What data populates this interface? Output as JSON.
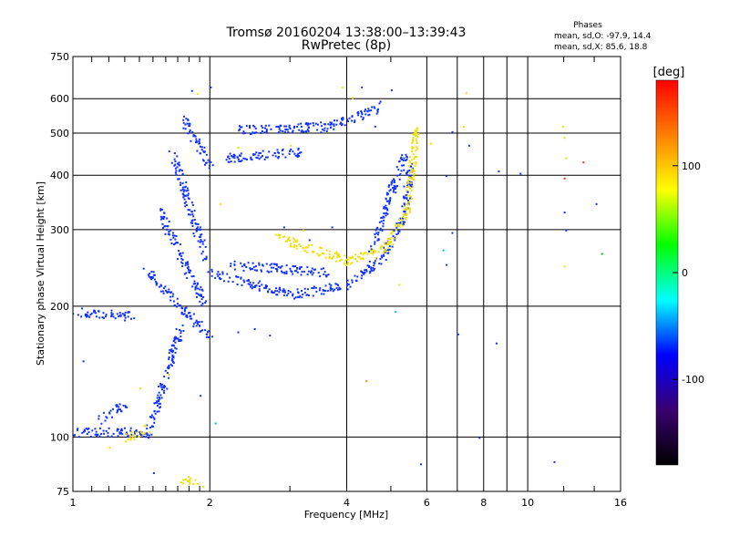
{
  "chart_data": {
    "type": "scatter",
    "title": "Tromsø 20160204 13:38:00–13:39:43",
    "subtitle": "RwPretec (8p)",
    "xlabel": "Frequency [MHz]",
    "ylabel": "Stationary phase Virtual Height [km]",
    "x_scale": "log",
    "y_scale": "log",
    "xlim": [
      1,
      16
    ],
    "ylim": [
      75,
      750
    ],
    "xticks": [
      "1",
      "2",
      "4",
      "6",
      "8",
      "10",
      "16"
    ],
    "yticks": [
      "75",
      "100",
      "200",
      "300",
      "400",
      "500",
      "600",
      "750"
    ],
    "grid": true,
    "phase_info": {
      "title": "Phases",
      "line_o": "mean, sd,O: -97.9, 14.4",
      "line_x": "mean, sd,X:  85.6, 18.8"
    },
    "colorbar": {
      "label": "[deg]",
      "range": [
        -180,
        180
      ],
      "ticks": [
        "100",
        "0",
        "-100"
      ],
      "stops": [
        "#000000",
        "#3a0070",
        "#0000ff",
        "#00ffff",
        "#00ff00",
        "#ffff00",
        "#ff8000",
        "#ff0000"
      ]
    },
    "series": [
      {
        "color": "#1030ff",
        "segments": [
          [
            1.0,
            195,
            1.35,
            190
          ],
          [
            1.0,
            103,
            1.4,
            103
          ],
          [
            1.45,
            100,
            1.72,
            180
          ],
          [
            1.45,
            240,
            2.0,
            170
          ],
          [
            1.55,
            330,
            1.95,
            200
          ],
          [
            1.65,
            450,
            1.95,
            260
          ],
          [
            1.75,
            540,
            2.0,
            420
          ],
          [
            2.0,
            240,
            3.0,
            213
          ],
          [
            3.0,
            213,
            4.0,
            225
          ],
          [
            4.0,
            225,
            4.7,
            255
          ],
          [
            4.7,
            255,
            5.3,
            320
          ],
          [
            5.3,
            320,
            5.5,
            420
          ],
          [
            4.5,
            270,
            5.35,
            450
          ],
          [
            2.3,
            510,
            3.6,
            520
          ],
          [
            2.15,
            440,
            3.2,
            455
          ],
          [
            2.2,
            250,
            3.6,
            240
          ],
          [
            3.5,
            510,
            4.8,
            580
          ],
          [
            1.15,
            110,
            1.3,
            120
          ]
        ]
      },
      {
        "color": "#f0e000",
        "segments": [
          [
            2.8,
            290,
            4.0,
            255
          ],
          [
            4.0,
            255,
            4.8,
            270
          ],
          [
            4.8,
            270,
            5.4,
            330
          ],
          [
            5.4,
            330,
            5.7,
            520
          ],
          [
            1.3,
            100,
            1.45,
            105
          ],
          [
            1.75,
            80,
            1.9,
            78
          ]
        ]
      }
    ],
    "scatter_points": [
      [
        1.82,
        628,
        "#1030ff"
      ],
      [
        1.87,
        618,
        "#f0e000"
      ],
      [
        2.0,
        640,
        "#1030ff"
      ],
      [
        3.9,
        640,
        "#f0e000"
      ],
      [
        4.3,
        640,
        "#1030ff"
      ],
      [
        5.0,
        630,
        "#1030ff"
      ],
      [
        7.3,
        620,
        "#f0e000"
      ],
      [
        7.2,
        520,
        "#f0e000"
      ],
      [
        6.8,
        505,
        "#1030ff"
      ],
      [
        7.4,
        470,
        "#1030ff"
      ],
      [
        6.1,
        475,
        "#f0e000"
      ],
      [
        6.6,
        400,
        "#1030ff"
      ],
      [
        8.6,
        410,
        "#1030ff"
      ],
      [
        9.6,
        405,
        "#1030ff"
      ],
      [
        11.9,
        520,
        "#f0e000"
      ],
      [
        12.0,
        490,
        "#f0e000"
      ],
      [
        12.1,
        440,
        "#f0e000"
      ],
      [
        12.0,
        395,
        "#ff3000"
      ],
      [
        13.2,
        430,
        "#ff3000"
      ],
      [
        14.1,
        345,
        "#1030ff"
      ],
      [
        12.0,
        330,
        "#1030ff"
      ],
      [
        12.1,
        300,
        "#1030ff"
      ],
      [
        14.5,
        265,
        "#00c000"
      ],
      [
        12.0,
        248,
        "#f0e000"
      ],
      [
        6.8,
        296,
        "#1030ff"
      ],
      [
        6.5,
        270,
        "#00c0c0"
      ],
      [
        6.6,
        250,
        "#1030ff"
      ],
      [
        5.2,
        225,
        "#f0e000"
      ],
      [
        5.1,
        195,
        "#00c0c0"
      ],
      [
        7.0,
        173,
        "#1030ff"
      ],
      [
        8.5,
        165,
        "#1030ff"
      ],
      [
        4.4,
        135,
        "#ff8000"
      ],
      [
        7.8,
        100,
        "#1030ff"
      ],
      [
        5.8,
        87,
        "#1030ff"
      ],
      [
        11.4,
        88,
        "#1030ff"
      ],
      [
        1.2,
        95,
        "#f0e000"
      ],
      [
        1.5,
        83,
        "#1030ff"
      ],
      [
        1.05,
        150,
        "#1030ff"
      ],
      [
        2.7,
        172,
        "#1030ff"
      ],
      [
        2.5,
        178,
        "#1030ff"
      ],
      [
        2.3,
        175,
        "#1030ff"
      ],
      [
        1.9,
        125,
        "#1030ff"
      ],
      [
        2.05,
        108,
        "#00c0c0"
      ],
      [
        1.62,
        140,
        "#f0e000"
      ],
      [
        1.4,
        130,
        "#f0e000"
      ],
      [
        2.1,
        345,
        "#f0e000"
      ],
      [
        2.3,
        465,
        "#f0e000"
      ],
      [
        3.0,
        470,
        "#f0e000"
      ],
      [
        3.2,
        300,
        "#f0e000"
      ],
      [
        3.6,
        270,
        "#f0e000"
      ],
      [
        4.2,
        255,
        "#f0e000"
      ],
      [
        3.3,
        285,
        "#1030ff"
      ],
      [
        2.9,
        305,
        "#1030ff"
      ],
      [
        3.7,
        305,
        "#1030ff"
      ],
      [
        2.6,
        250,
        "#1030ff"
      ],
      [
        4.1,
        605,
        "#f0e000"
      ],
      [
        4.6,
        520,
        "#1030ff"
      ]
    ]
  }
}
